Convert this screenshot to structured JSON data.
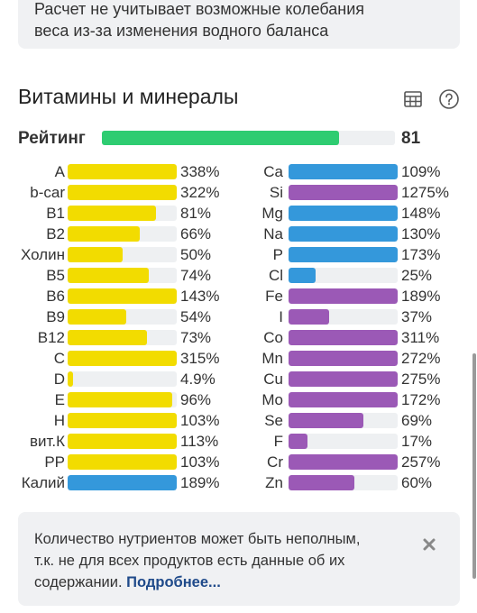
{
  "note_top": {
    "line1": "Расчет не учитывает возможные колебания",
    "line2": "веса из-за изменения водного баланса"
  },
  "section": {
    "title": "Витамины и минералы",
    "icons": [
      "table-icon",
      "help-icon"
    ]
  },
  "rating": {
    "label": "Рейтинг",
    "value": "81",
    "fill_fraction": 0.81,
    "color": "#2ecc71"
  },
  "colors": {
    "yellow": "#f2dc00",
    "blue": "#3498db",
    "purple": "#9b59b6",
    "track": "#eef0f2"
  },
  "vitamins": [
    {
      "label": "A",
      "pct": "338%",
      "fill": 1.0,
      "color": "yellow"
    },
    {
      "label": "b-car",
      "pct": "322%",
      "fill": 1.0,
      "color": "yellow"
    },
    {
      "label": "B1",
      "pct": "81%",
      "fill": 0.81,
      "color": "yellow"
    },
    {
      "label": "B2",
      "pct": "66%",
      "fill": 0.66,
      "color": "yellow"
    },
    {
      "label": "Холин",
      "pct": "50%",
      "fill": 0.5,
      "color": "yellow"
    },
    {
      "label": "B5",
      "pct": "74%",
      "fill": 0.74,
      "color": "yellow"
    },
    {
      "label": "B6",
      "pct": "143%",
      "fill": 1.0,
      "color": "yellow"
    },
    {
      "label": "B9",
      "pct": "54%",
      "fill": 0.54,
      "color": "yellow"
    },
    {
      "label": "B12",
      "pct": "73%",
      "fill": 0.73,
      "color": "yellow"
    },
    {
      "label": "C",
      "pct": "315%",
      "fill": 1.0,
      "color": "yellow"
    },
    {
      "label": "D",
      "pct": "4.9%",
      "fill": 0.049,
      "color": "yellow"
    },
    {
      "label": "E",
      "pct": "96%",
      "fill": 0.96,
      "color": "yellow"
    },
    {
      "label": "H",
      "pct": "103%",
      "fill": 1.0,
      "color": "yellow"
    },
    {
      "label": "вит.К",
      "pct": "113%",
      "fill": 1.0,
      "color": "yellow"
    },
    {
      "label": "PP",
      "pct": "103%",
      "fill": 1.0,
      "color": "yellow"
    },
    {
      "label": "Калий",
      "pct": "189%",
      "fill": 1.0,
      "color": "blue"
    }
  ],
  "minerals": [
    {
      "label": "Ca",
      "pct": "109%",
      "fill": 1.0,
      "color": "blue"
    },
    {
      "label": "Si",
      "pct": "1275%",
      "fill": 1.0,
      "color": "purple"
    },
    {
      "label": "Mg",
      "pct": "148%",
      "fill": 1.0,
      "color": "blue"
    },
    {
      "label": "Na",
      "pct": "130%",
      "fill": 1.0,
      "color": "blue"
    },
    {
      "label": "P",
      "pct": "173%",
      "fill": 1.0,
      "color": "blue"
    },
    {
      "label": "Cl",
      "pct": "25%",
      "fill": 0.25,
      "color": "blue"
    },
    {
      "label": "Fe",
      "pct": "189%",
      "fill": 1.0,
      "color": "purple"
    },
    {
      "label": "I",
      "pct": "37%",
      "fill": 0.37,
      "color": "purple"
    },
    {
      "label": "Co",
      "pct": "311%",
      "fill": 1.0,
      "color": "purple"
    },
    {
      "label": "Mn",
      "pct": "272%",
      "fill": 1.0,
      "color": "purple"
    },
    {
      "label": "Cu",
      "pct": "275%",
      "fill": 1.0,
      "color": "purple"
    },
    {
      "label": "Mo",
      "pct": "172%",
      "fill": 1.0,
      "color": "purple"
    },
    {
      "label": "Se",
      "pct": "69%",
      "fill": 0.69,
      "color": "purple"
    },
    {
      "label": "F",
      "pct": "17%",
      "fill": 0.17,
      "color": "purple"
    },
    {
      "label": "Cr",
      "pct": "257%",
      "fill": 1.0,
      "color": "purple"
    },
    {
      "label": "Zn",
      "pct": "60%",
      "fill": 0.6,
      "color": "purple"
    }
  ],
  "note_bottom": {
    "line1": "Количество нутриентов может быть неполным,",
    "line2": "т.к. не для всех продуктов есть данные об их",
    "line3": "содержании.",
    "more_link": "Подробнее..."
  }
}
